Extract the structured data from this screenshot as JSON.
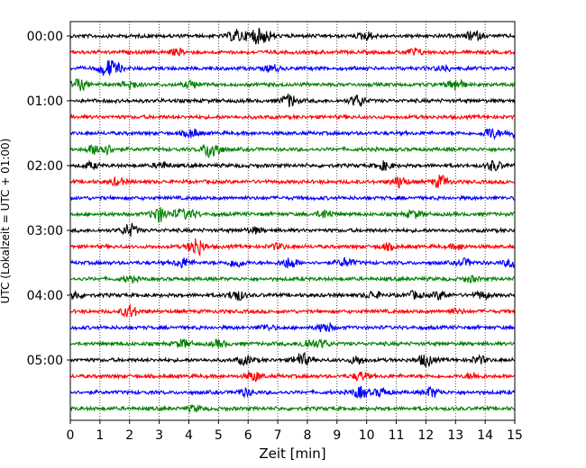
{
  "chart_data": {
    "type": "helicorder",
    "xlabel": "Zeit  [min]",
    "ylabel": "UTC (Lokalzeit = UTC + 01:00)",
    "xlim": [
      0,
      15
    ],
    "x_ticks": [
      "0",
      "1",
      "2",
      "3",
      "4",
      "5",
      "6",
      "7",
      "8",
      "9",
      "10",
      "11",
      "12",
      "13",
      "14",
      "15"
    ],
    "y_ticks": [
      {
        "label": "00:00",
        "row": 0
      },
      {
        "label": "01:00",
        "row": 4
      },
      {
        "label": "02:00",
        "row": 8
      },
      {
        "label": "03:00",
        "row": 12
      },
      {
        "label": "04:00",
        "row": 16
      },
      {
        "label": "05:00",
        "row": 20
      }
    ],
    "minutes_per_line": 15,
    "vertical_grid": "dotted, every 1 min",
    "color_cycle": [
      "#000000",
      "#ff0000",
      "#0000ff",
      "#008000"
    ],
    "traces": [
      {
        "start": "00:00",
        "bursts": [
          [
            5.6,
            0.9
          ],
          [
            6.2,
            1.0
          ],
          [
            6.6,
            0.8
          ],
          [
            10.0,
            0.6
          ],
          [
            13.6,
            0.7
          ]
        ]
      },
      {
        "start": "00:15",
        "bursts": [
          [
            3.6,
            0.4
          ],
          [
            11.6,
            0.5
          ]
        ]
      },
      {
        "start": "00:30",
        "bursts": [
          [
            1.2,
            1.0
          ],
          [
            1.5,
            0.7
          ],
          [
            6.8,
            0.5
          ],
          [
            12.6,
            0.4
          ]
        ]
      },
      {
        "start": "00:45",
        "bursts": [
          [
            0.3,
            0.8
          ],
          [
            2.0,
            0.6
          ],
          [
            4.1,
            0.5
          ],
          [
            13.0,
            0.9
          ]
        ]
      },
      {
        "start": "01:00",
        "bursts": [
          [
            7.4,
            0.9
          ],
          [
            9.7,
            0.8
          ]
        ]
      },
      {
        "start": "01:15",
        "bursts": []
      },
      {
        "start": "01:30",
        "bursts": [
          [
            4.1,
            0.6
          ],
          [
            14.2,
            0.8
          ],
          [
            14.95,
            0.6
          ]
        ]
      },
      {
        "start": "01:45",
        "bursts": [
          [
            0.8,
            0.6
          ],
          [
            1.2,
            0.7
          ],
          [
            4.7,
            0.9
          ],
          [
            4.9,
            0.6
          ]
        ]
      },
      {
        "start": "02:00",
        "bursts": [
          [
            0.7,
            0.4
          ],
          [
            3.1,
            0.4
          ],
          [
            10.6,
            0.6
          ],
          [
            14.3,
            0.7
          ]
        ]
      },
      {
        "start": "02:15",
        "bursts": [
          [
            1.6,
            0.5
          ],
          [
            11.1,
            0.8
          ],
          [
            12.5,
            0.9
          ]
        ]
      },
      {
        "start": "02:30",
        "bursts": []
      },
      {
        "start": "02:45",
        "bursts": [
          [
            3.0,
            1.1
          ],
          [
            3.7,
            0.6
          ],
          [
            4.1,
            0.5
          ],
          [
            8.6,
            0.6
          ],
          [
            11.6,
            0.5
          ]
        ]
      },
      {
        "start": "03:00",
        "bursts": [
          [
            2.0,
            0.9
          ],
          [
            6.2,
            0.4
          ]
        ]
      },
      {
        "start": "03:15",
        "bursts": [
          [
            4.25,
            1.4
          ],
          [
            7.0,
            0.4
          ],
          [
            10.7,
            0.4
          ],
          [
            13.1,
            0.4
          ]
        ]
      },
      {
        "start": "03:30",
        "bursts": [
          [
            3.8,
            0.7
          ],
          [
            5.6,
            0.6
          ],
          [
            7.4,
            0.8
          ],
          [
            9.3,
            0.6
          ],
          [
            13.3,
            0.5
          ],
          [
            14.9,
            0.6
          ]
        ]
      },
      {
        "start": "03:45",
        "bursts": [
          [
            2.0,
            0.4
          ],
          [
            13.5,
            0.4
          ]
        ]
      },
      {
        "start": "04:00",
        "bursts": [
          [
            0.1,
            0.6
          ],
          [
            5.6,
            0.8
          ],
          [
            10.2,
            0.5
          ],
          [
            11.6,
            0.5
          ],
          [
            12.5,
            0.6
          ],
          [
            13.9,
            0.5
          ]
        ]
      },
      {
        "start": "04:15",
        "bursts": [
          [
            2.0,
            0.9
          ],
          [
            13.0,
            0.3
          ]
        ]
      },
      {
        "start": "04:30",
        "bursts": [
          [
            6.6,
            0.4
          ],
          [
            8.6,
            0.7
          ]
        ]
      },
      {
        "start": "04:45",
        "bursts": [
          [
            3.8,
            0.6
          ],
          [
            5.0,
            0.5
          ],
          [
            8.0,
            0.6
          ],
          [
            8.5,
            0.5
          ]
        ]
      },
      {
        "start": "05:00",
        "bursts": [
          [
            5.9,
            0.6
          ],
          [
            7.8,
            1.0
          ],
          [
            9.7,
            0.6
          ],
          [
            12.0,
            0.9
          ],
          [
            13.8,
            0.5
          ]
        ]
      },
      {
        "start": "05:15",
        "bursts": [
          [
            6.2,
            0.7
          ],
          [
            9.8,
            0.6
          ],
          [
            13.6,
            0.4
          ]
        ]
      },
      {
        "start": "05:30",
        "bursts": [
          [
            5.9,
            0.5
          ],
          [
            9.8,
            0.8
          ],
          [
            10.5,
            0.6
          ],
          [
            12.2,
            0.7
          ]
        ]
      },
      {
        "start": "05:45",
        "bursts": [
          [
            4.2,
            0.4
          ]
        ]
      }
    ]
  }
}
